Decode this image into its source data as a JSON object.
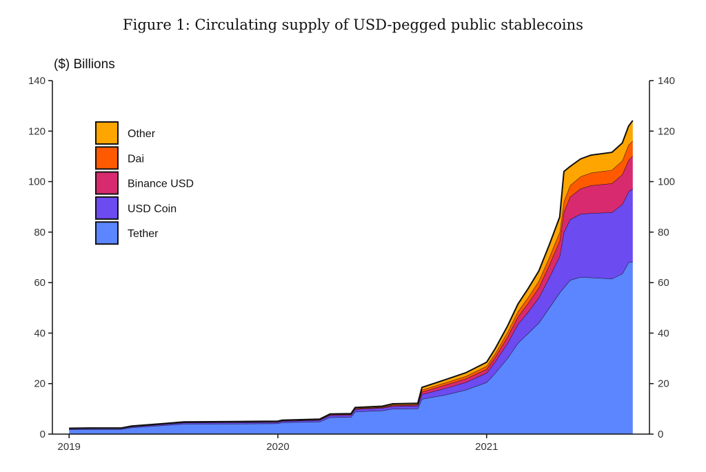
{
  "figure": {
    "title": "Figure 1: Circulating supply of USD-pegged public stablecoins",
    "unit_label": "($) Billions"
  },
  "chart_data": {
    "type": "area",
    "stacked": true,
    "title": "Figure 1: Circulating supply of USD-pegged public stablecoins",
    "ylabel": "($) Billions",
    "ylim": [
      0,
      140
    ],
    "y_ticks": [
      0,
      20,
      40,
      60,
      80,
      100,
      120,
      140
    ],
    "x_ticks": [
      "2019",
      "2020",
      "2021"
    ],
    "grid": false,
    "legend_position": "top-left",
    "x": [
      2019.0,
      2019.1,
      2019.25,
      2019.3,
      2019.45,
      2019.55,
      2019.8,
      2020.0,
      2020.02,
      2020.2,
      2020.25,
      2020.35,
      2020.37,
      2020.5,
      2020.55,
      2020.67,
      2020.69,
      2020.8,
      2020.9,
      2021.0,
      2021.04,
      2021.1,
      2021.15,
      2021.2,
      2021.25,
      2021.3,
      2021.35,
      2021.37,
      2021.4,
      2021.45,
      2021.5,
      2021.6,
      2021.65,
      2021.68,
      2021.7
    ],
    "series": [
      {
        "name": "Tether",
        "color": "#5b86ff",
        "values": [
          1.8,
          1.9,
          1.9,
          2.6,
          3.4,
          4.0,
          4.1,
          4.2,
          4.6,
          4.9,
          6.6,
          6.7,
          8.9,
          9.3,
          10.0,
          10.1,
          13.9,
          15.5,
          17.5,
          20.5,
          24.0,
          30.0,
          36.0,
          40.0,
          44.0,
          50.0,
          56.0,
          58.0,
          61.0,
          62.2,
          62.0,
          61.5,
          63.5,
          68.0,
          68.2
        ]
      },
      {
        "name": "USD Coin",
        "color": "#6c4bf0",
        "values": [
          0.3,
          0.3,
          0.3,
          0.35,
          0.45,
          0.5,
          0.5,
          0.5,
          0.5,
          0.6,
          0.8,
          0.8,
          0.9,
          1.0,
          1.0,
          1.1,
          1.8,
          2.6,
          3.0,
          3.7,
          4.5,
          6.0,
          7.5,
          8.5,
          10.0,
          12.0,
          14.5,
          22.0,
          24.0,
          25.0,
          25.5,
          26.3,
          27.5,
          28.0,
          29.0
        ]
      },
      {
        "name": "Binance USD",
        "color": "#d82a6f",
        "values": [
          0.05,
          0.05,
          0.05,
          0.06,
          0.1,
          0.12,
          0.15,
          0.2,
          0.2,
          0.2,
          0.3,
          0.3,
          0.3,
          0.3,
          0.4,
          0.4,
          1.0,
          1.3,
          1.4,
          1.5,
          1.8,
          2.5,
          3.0,
          3.5,
          4.0,
          5.0,
          6.0,
          8.0,
          9.0,
          10.0,
          11.0,
          11.5,
          11.8,
          12.5,
          13.0
        ]
      },
      {
        "name": "Dai",
        "color": "#ff5a00",
        "values": [
          0.07,
          0.07,
          0.07,
          0.07,
          0.07,
          0.07,
          0.07,
          0.08,
          0.08,
          0.08,
          0.1,
          0.1,
          0.15,
          0.15,
          0.2,
          0.2,
          0.8,
          0.9,
          1.0,
          1.2,
          1.4,
          1.8,
          2.0,
          2.3,
          2.6,
          3.0,
          3.5,
          4.0,
          4.5,
          4.8,
          5.0,
          5.3,
          5.5,
          6.0,
          6.0
        ]
      },
      {
        "name": "Other",
        "color": "#ffa500",
        "values": [
          0.1,
          0.1,
          0.1,
          0.12,
          0.15,
          0.15,
          0.15,
          0.15,
          0.15,
          0.15,
          0.2,
          0.2,
          0.3,
          0.3,
          0.4,
          0.4,
          1.0,
          1.2,
          1.4,
          1.6,
          2.0,
          2.5,
          3.0,
          3.5,
          4.0,
          5.0,
          6.0,
          12.0,
          7.5,
          7.0,
          7.0,
          7.0,
          7.0,
          7.5,
          8.0
        ]
      }
    ],
    "legend_order": [
      "Other",
      "Dai",
      "Binance USD",
      "USD Coin",
      "Tether"
    ]
  }
}
